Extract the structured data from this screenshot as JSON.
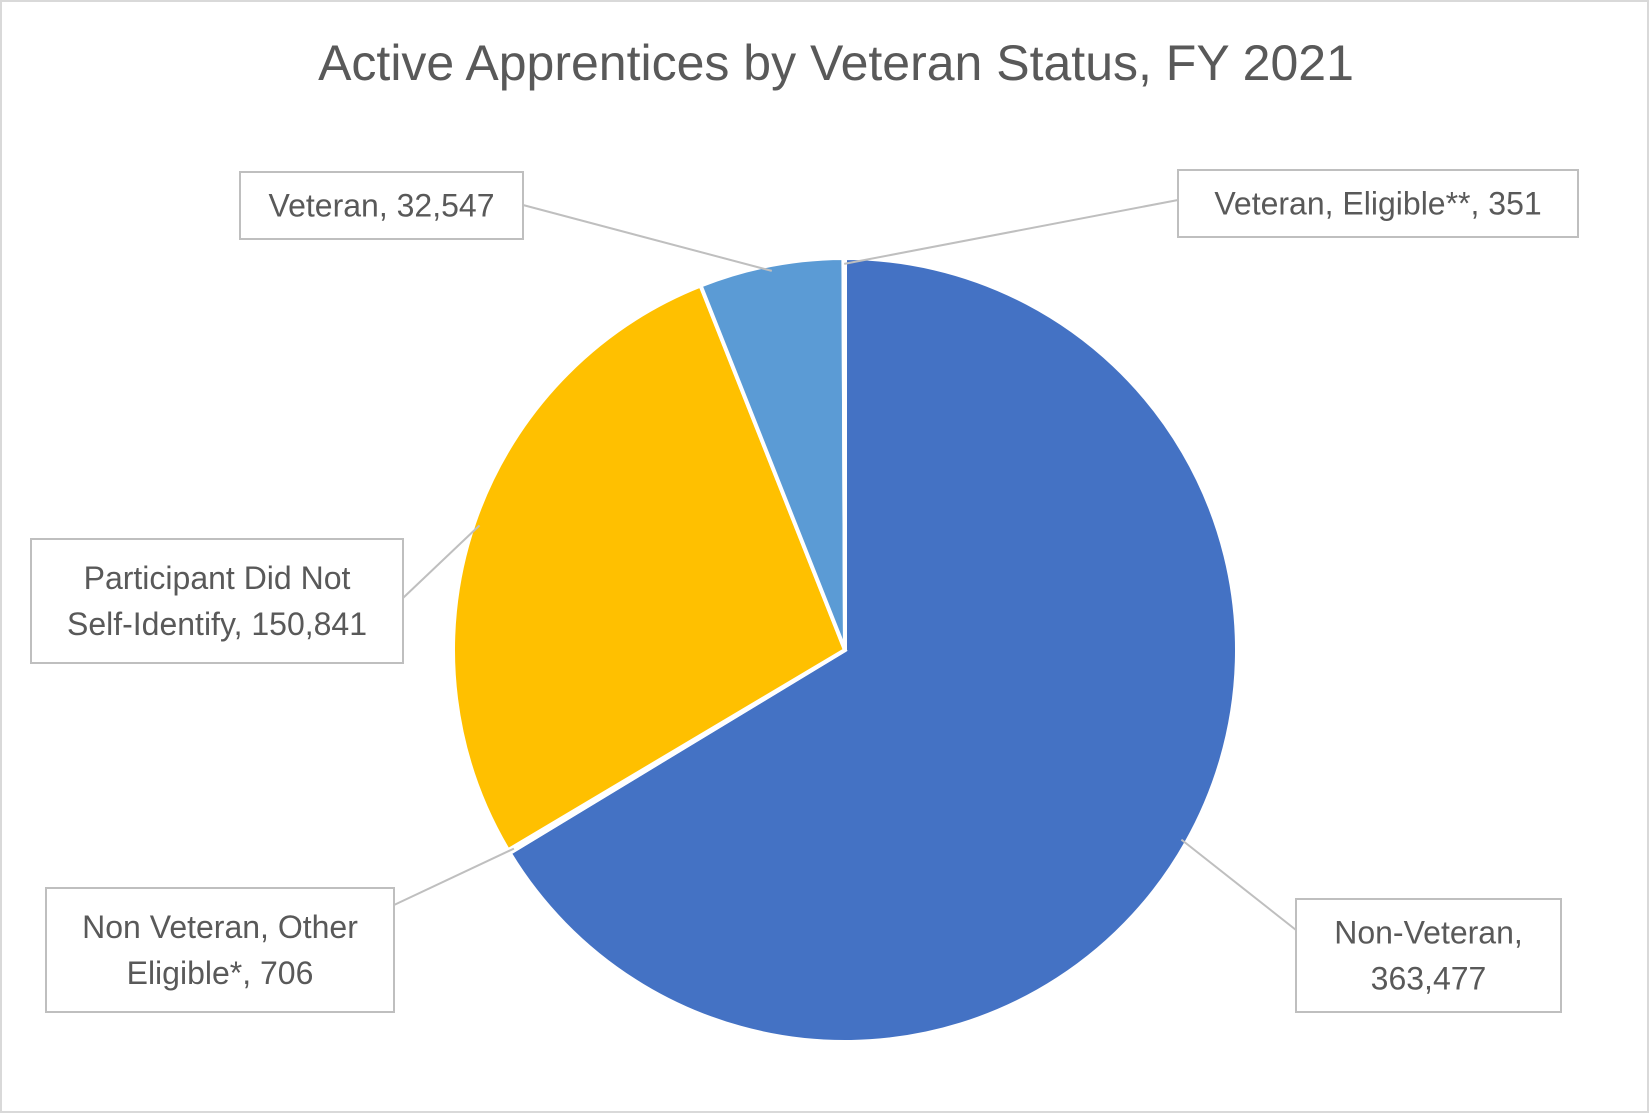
{
  "chart_data": {
    "type": "pie",
    "title": "Active Apprentices by Veteran Status, FY 2021",
    "slices": [
      {
        "label": "Non-Veteran",
        "value": 363477,
        "display": "363,477",
        "color": "#4472C4",
        "label_lines": [
          "Non-Veteran,",
          "363,477"
        ]
      },
      {
        "label": "Non Veteran, Other Eligible*",
        "value": 706,
        "display": "706",
        "color": "#ED7D31",
        "label_lines": [
          "Non Veteran, Other",
          "Eligible*, 706"
        ]
      },
      {
        "label": "Participant Did Not Self-Identify",
        "value": 150841,
        "display": "150,841",
        "color": "#FFC000",
        "label_lines": [
          "Participant Did Not",
          "Self-Identify, 150,841"
        ]
      },
      {
        "label": "Veteran",
        "value": 32547,
        "display": "32,547",
        "color": "#5B9BD5",
        "label_lines": [
          "Veteran, 32,547"
        ]
      },
      {
        "label": "Veteran, Eligible**",
        "value": 351,
        "display": "351",
        "color": "#CC33CC",
        "label_lines": [
          "Veteran, Eligible**, 351"
        ]
      }
    ],
    "start_angle": "12 o'clock",
    "direction": "clockwise",
    "legend": "none",
    "data_labels": "callouts"
  }
}
